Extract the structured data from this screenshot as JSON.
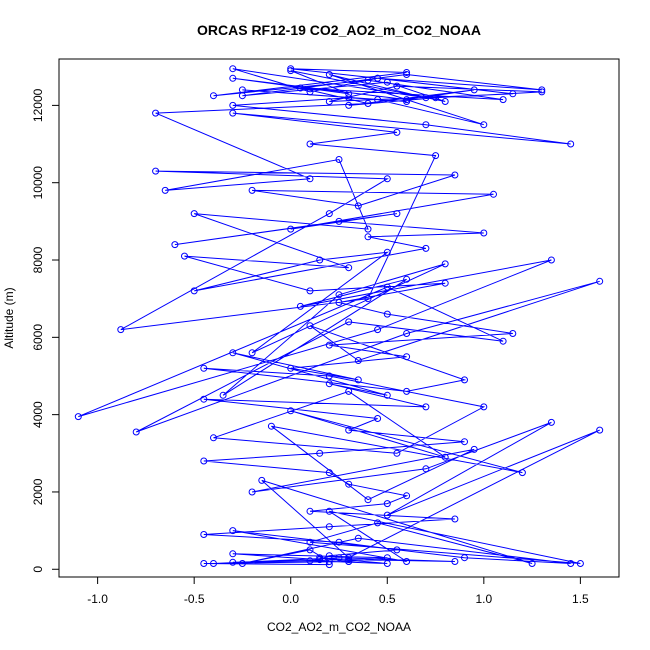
{
  "chart_data": {
    "type": "line",
    "title": "ORCAS RF12-19 CO2_AO2_m_CO2_NOAA",
    "xlabel": "CO2_AO2_m_CO2_NOAA",
    "ylabel": "Altitude (m)",
    "xlim": [
      -1.2,
      1.7
    ],
    "ylim": [
      -200,
      13200
    ],
    "xticks": [
      -1.0,
      -0.5,
      0.0,
      0.5,
      1.0,
      1.5
    ],
    "xtick_labels": [
      "-1.0",
      "-0.5",
      "0.0",
      "0.5",
      "1.0",
      "1.5"
    ],
    "yticks": [
      0,
      2000,
      4000,
      6000,
      8000,
      10000,
      12000
    ],
    "ytick_labels": [
      "0",
      "2000",
      "4000",
      "6000",
      "8000",
      "10000",
      "12000"
    ],
    "grid": false,
    "series": [
      {
        "color": "#0000ff",
        "marker": "open-circle",
        "x": [
          0.2,
          0.1,
          -0.25,
          0.35,
          1.45,
          0.9,
          -0.3,
          0.6,
          0.2,
          1.5,
          0.1,
          0.45,
          1.25,
          -0.15,
          0.3,
          1.6,
          0.5,
          1.35,
          0.7,
          -0.2,
          0.95,
          0.4,
          -0.1,
          1.2,
          0.0,
          0.8,
          0.3,
          -0.4,
          0.55,
          1.0,
          0.2,
          -0.45,
          0.6,
          0.9,
          0.1,
          0.35,
          1.6,
          0.6,
          -0.8,
          0.3,
          1.1,
          0.5,
          -1.1,
          0.45,
          1.35,
          0.05,
          0.6,
          -0.35,
          0.25,
          0.8,
          -0.2,
          0.5,
          0.15,
          -0.5,
          0.7,
          0.4,
          1.0,
          0.25,
          -0.6,
          0.55,
          0.0,
          1.05,
          -0.2,
          0.35,
          0.85,
          -0.7,
          0.5,
          0.2,
          -0.88,
          0.4,
          0.75,
          0.1,
          0.55,
          -0.3,
          1.45,
          0.7,
          -0.3,
          0.3,
          0.6,
          -0.25,
          0.45,
          1.0,
          0.2,
          0.7,
          -0.3,
          0.1,
          0.45,
          1.3,
          0.6,
          -0.25,
          0.5,
          0.8,
          0.0,
          0.3,
          -0.3,
          0.6,
          0.95,
          0.3,
          0.75,
          1.3,
          0.55,
          0.2,
          1.15,
          0.45,
          0.0,
          0.6,
          -0.4,
          0.4,
          1.1,
          0.05,
          0.4,
          -0.7,
          0.1,
          -0.65,
          0.25,
          0.4,
          -0.5,
          0.3,
          -0.55,
          0.1,
          0.8,
          0.25,
          0.5,
          1.15,
          0.2,
          0.6,
          0.0,
          0.35,
          -0.3,
          0.5,
          0.2,
          0.7,
          -0.45,
          0.45,
          0.3,
          0.9,
          0.15,
          -0.45,
          0.2,
          0.3,
          0.6,
          0.5,
          0.1,
          0.85,
          0.2,
          -0.45,
          0.25,
          0.55,
          0.2,
          0.15,
          -0.3,
          0.5,
          0.3,
          -0.4,
          0.25,
          0.85,
          0.3,
          -0.3,
          0.1,
          0.5,
          0.15,
          0.3,
          -0.45,
          0.2
        ],
        "y": [
          200,
          500,
          150,
          800,
          150,
          300,
          1000,
          200,
          1500,
          150,
          700,
          1200,
          150,
          2300,
          300,
          3600,
          1400,
          3800,
          2600,
          2000,
          3100,
          1800,
          3700,
          2500,
          4100,
          2900,
          4600,
          3400,
          3000,
          4200,
          5000,
          5200,
          4600,
          4900,
          6300,
          5400,
          7450,
          6100,
          3550,
          6400,
          5900,
          7300,
          3950,
          6200,
          8000,
          6800,
          7500,
          4500,
          7100,
          7900,
          5600,
          8200,
          8000,
          7200,
          8300,
          8600,
          8700,
          9000,
          8400,
          9200,
          8800,
          9700,
          9800,
          9400,
          10200,
          10300,
          10100,
          9200,
          6200,
          7000,
          10700,
          11000,
          11300,
          11800,
          11000,
          11500,
          12000,
          12200,
          12100,
          12400,
          12150,
          11500,
          12800,
          12200,
          12950,
          12350,
          12700,
          12400,
          12800,
          12250,
          12600,
          12100,
          12900,
          12300,
          12700,
          12150,
          12400,
          12000,
          12200,
          12350,
          12500,
          12100,
          12300,
          12700,
          12950,
          12850,
          12250,
          12650,
          12150,
          12450,
          12050,
          11800,
          10100,
          9800,
          10600,
          8800,
          9200,
          7800,
          8100,
          7200,
          7400,
          6900,
          6600,
          6100,
          5800,
          5500,
          5200,
          4900,
          5600,
          4500,
          4800,
          4200,
          4400,
          3900,
          3600,
          3300,
          3000,
          2800,
          2500,
          2200,
          1900,
          1700,
          1500,
          1300,
          1100,
          900,
          700,
          500,
          350,
          250,
          400,
          300,
          200,
          150,
          300,
          200,
          250,
          180,
          220,
          150,
          300,
          200,
          150,
          120
        ]
      }
    ]
  }
}
